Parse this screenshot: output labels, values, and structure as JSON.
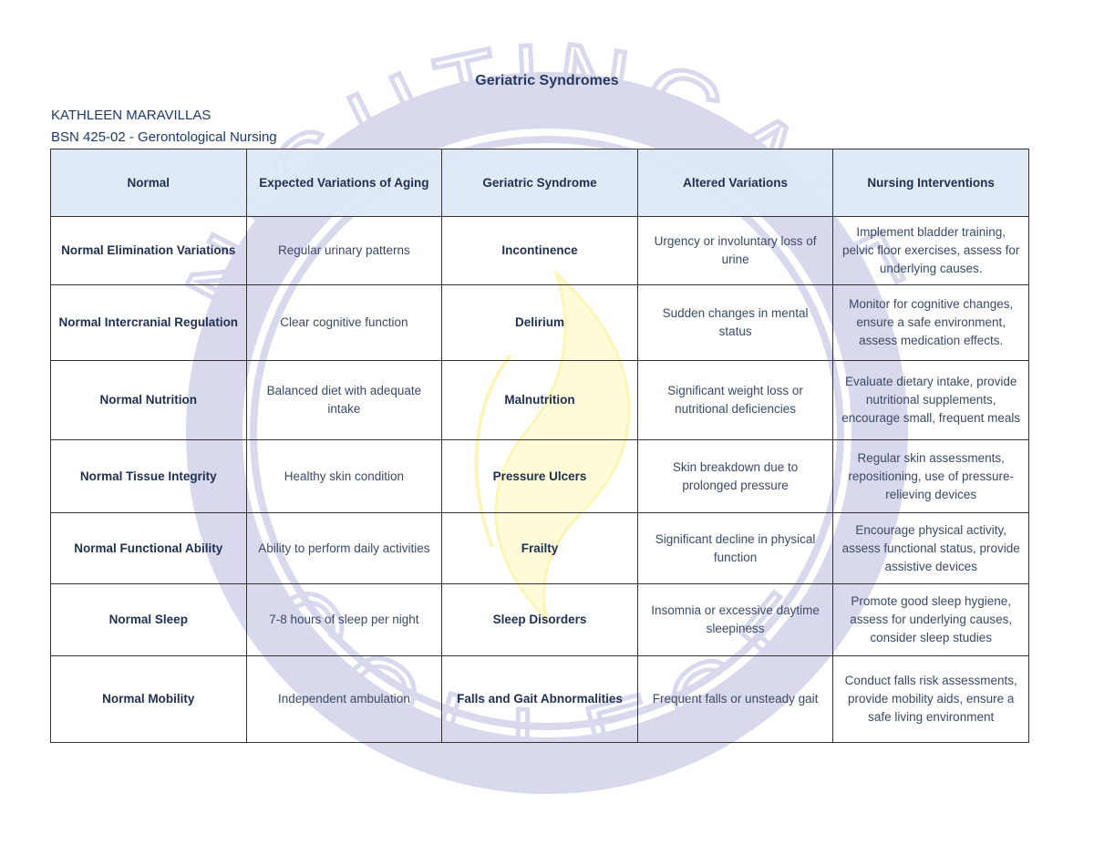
{
  "document": {
    "title": "Geriatric Syndromes",
    "author": "KATHLEEN MARAVILLAS",
    "course": "BSN 425-02 - Gerontological Nursing",
    "watermark": {
      "text_top": "NIGHTINGALE",
      "text_bottom": "COLLEGE",
      "ring_color": "#d9d9ee",
      "flame_color": "#fdfbd8"
    }
  },
  "table": {
    "headers": [
      "Normal",
      "Expected Variations of Aging",
      "Geriatric Syndrome",
      "Altered Variations",
      "Nursing Interventions"
    ],
    "rows": [
      [
        "Normal Elimination Variations",
        "Regular urinary patterns",
        "Incontinence",
        "Urgency or involuntary loss of urine",
        "Implement bladder training, pelvic floor exercises, assess for underlying causes."
      ],
      [
        "Normal Intercranial Regulation",
        "Clear cognitive function",
        "Delirium",
        "Sudden changes in mental status",
        "Monitor for cognitive changes, ensure a safe environment, assess medication effects."
      ],
      [
        "Normal Nutrition",
        "Balanced diet with adequate intake",
        "Malnutrition",
        "Significant weight loss or nutritional deficiencies",
        "Evaluate dietary intake, provide nutritional supplements, encourage small, frequent meals"
      ],
      [
        "Normal Tissue Integrity",
        "Healthy skin condition",
        "Pressure Ulcers",
        "Skin breakdown due to prolonged pressure",
        "Regular skin assessments, repositioning, use of pressure-relieving devices"
      ],
      [
        "Normal Functional Ability",
        "Ability to perform daily activities",
        "Frailty",
        "Significant decline in physical function",
        "Encourage physical activity, assess functional status, provide assistive devices"
      ],
      [
        "Normal Sleep",
        "7-8 hours of sleep per night",
        "Sleep Disorders",
        "Insomnia or excessive daytime sleepiness",
        "Promote good sleep hygiene, assess for underlying causes, consider sleep studies"
      ],
      [
        "Normal Mobility",
        "Independent ambulation",
        "Falls and Gait Abnormalities",
        "Frequent falls or unsteady gait",
        "Conduct falls risk assessments, provide mobility aids, ensure a safe living environment"
      ]
    ]
  }
}
